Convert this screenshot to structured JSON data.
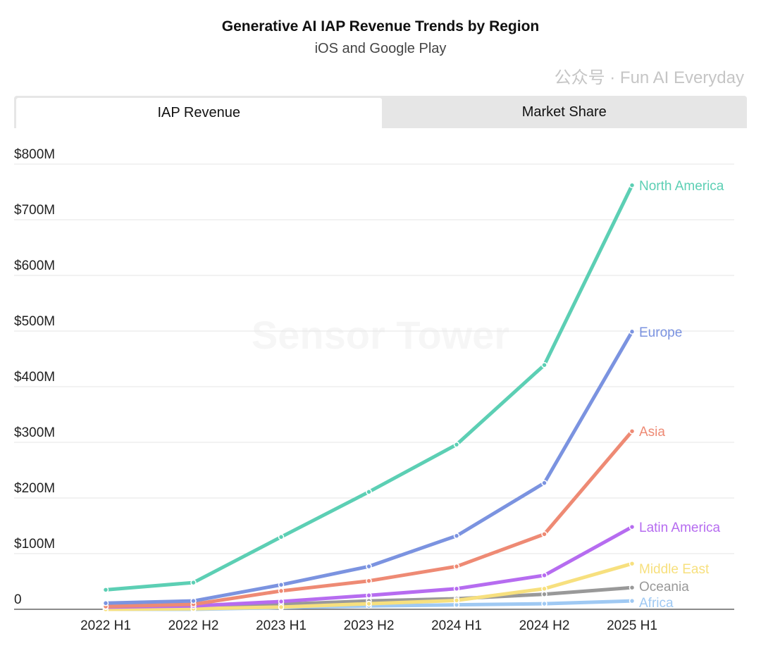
{
  "header": {
    "title": "Generative AI IAP Revenue Trends by Region",
    "subtitle": "iOS and Google Play"
  },
  "tabs": [
    {
      "label": "IAP Revenue",
      "active": true
    },
    {
      "label": "Market Share",
      "active": false
    }
  ],
  "watermarks": {
    "background": "Sensor Tower",
    "overlay": "公众号 · Fun AI Everyday"
  },
  "chart_data": {
    "type": "line",
    "title": "Generative AI IAP Revenue Trends by Region",
    "subtitle": "iOS and Google Play",
    "categories": [
      "2022 H1",
      "2022 H2",
      "2023 H1",
      "2023 H2",
      "2024 H1",
      "2024 H2",
      "2025 H1"
    ],
    "ylim": [
      0,
      800
    ],
    "yticks": [
      0,
      100,
      200,
      300,
      400,
      500,
      600,
      700,
      800
    ],
    "ytick_labels": [
      "0",
      "$100M",
      "$200M",
      "$300M",
      "$400M",
      "$500M",
      "$600M",
      "$700M",
      "$800M"
    ],
    "grid": true,
    "legend": "end-of-line labels",
    "series": [
      {
        "name": "North America",
        "color": "#5ccfb4",
        "values": [
          35,
          48,
          130,
          211,
          296,
          439,
          762
        ]
      },
      {
        "name": "Europe",
        "color": "#7b93e0",
        "values": [
          11,
          15,
          44,
          77,
          132,
          227,
          499
        ]
      },
      {
        "name": "Asia",
        "color": "#ee8a74",
        "values": [
          5,
          9,
          33,
          51,
          77,
          135,
          320
        ]
      },
      {
        "name": "Latin America",
        "color": "#b66cf0",
        "values": [
          4,
          6,
          14,
          25,
          37,
          61,
          148
        ]
      },
      {
        "name": "Middle East",
        "color": "#f7e07e",
        "values": [
          0,
          1,
          4,
          10,
          16,
          37,
          82
        ]
      },
      {
        "name": "Oceania",
        "color": "#999999",
        "values": [
          3,
          4,
          9,
          15,
          19,
          27,
          39
        ]
      },
      {
        "name": "Africa",
        "color": "#9fc9f3",
        "values": [
          0,
          0,
          3,
          6,
          8,
          10,
          15
        ]
      }
    ]
  }
}
